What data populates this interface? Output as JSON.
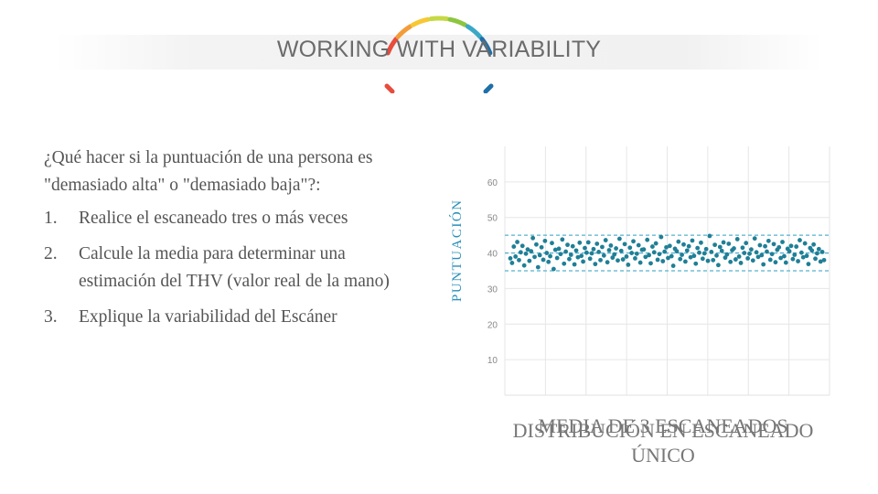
{
  "header": {
    "logo_text": "WORKING WITH VARIABILITY",
    "arc_colors": [
      "#e84c3d",
      "#f39c3a",
      "#f7c833",
      "#c6d844",
      "#8cc63f",
      "#3aa8c6",
      "#1f6fa8"
    ]
  },
  "content": {
    "question": "¿Qué hacer si la puntuación de una persona es \"demasiado alta\" o \"demasiado baja\"?:",
    "steps": [
      {
        "number": "1.",
        "text": "Realice el escaneado tres o más veces"
      },
      {
        "number": "2.",
        "text": "Calcule la media para determinar una estimación del THV (valor real de la mano)"
      },
      {
        "number": "3.",
        "text": "Explique la variabilidad del Escáner"
      }
    ]
  },
  "chart_data": {
    "type": "scatter",
    "ylabel": "PUNTUACIÓN",
    "xlabel_back": "MEDIA DE 3 ESCANEADOS",
    "xlabel_front": "DISTRIBUCIÓN EN ESCANEADO ÚNICO",
    "yticks": [
      10,
      20,
      30,
      40,
      50,
      60
    ],
    "ylim": [
      0,
      70
    ],
    "grid": true,
    "reference_lines": [
      35,
      40,
      45
    ],
    "point_color": "#1f7f96",
    "line_color": "#56b2cf",
    "y": [
      38.5,
      37.2,
      41.8,
      39.0,
      43.1,
      38.0,
      40.2,
      42.0,
      36.5,
      39.8,
      41.0,
      37.8,
      40.5,
      44.2,
      38.9,
      42.4,
      36.0,
      39.4,
      41.6,
      38.1,
      43.4,
      40.0,
      37.5,
      39.1,
      42.8,
      35.5,
      40.9,
      38.6,
      41.2,
      39.7,
      43.8,
      37.0,
      40.4,
      42.3,
      38.3,
      39.5,
      41.9,
      36.8,
      40.7,
      38.8,
      42.9,
      39.2,
      37.6,
      41.4,
      40.1,
      43.0,
      38.4,
      39.9,
      41.1,
      36.9,
      42.6,
      40.3,
      38.0,
      41.7,
      39.3,
      43.6,
      37.4,
      40.8,
      42.1,
      38.7,
      39.6,
      41.3,
      37.9,
      44.0,
      40.6,
      38.2,
      42.5,
      39.0,
      36.7,
      41.5,
      40.0,
      43.3,
      38.5,
      39.8,
      42.2,
      37.3,
      40.9,
      41.0,
      38.9,
      43.7,
      39.4,
      37.1,
      41.8,
      40.2,
      42.7,
      38.1,
      39.7,
      44.5,
      37.7,
      40.4,
      41.6,
      38.6,
      42.0,
      39.1,
      36.4,
      41.2,
      40.5,
      43.2,
      38.3,
      39.5,
      42.4,
      37.6,
      40.7,
      41.9,
      38.8,
      43.5,
      39.2,
      37.0,
      41.4,
      40.1,
      42.9,
      38.4,
      39.9,
      41.1,
      37.8,
      44.8,
      40.3,
      38.0,
      42.3,
      39.3,
      36.6,
      41.7,
      40.6,
      43.0,
      38.7,
      39.6,
      42.6,
      37.5,
      40.8,
      41.3,
      38.2,
      43.9,
      39.0,
      37.2,
      41.5,
      40.0,
      42.8,
      38.5,
      39.8,
      41.0,
      37.9,
      44.1,
      40.2,
      38.9,
      42.2,
      39.4,
      36.8,
      41.9,
      40.4,
      43.4,
      38.1,
      39.7,
      42.5,
      37.4,
      40.9,
      41.6,
      38.6,
      43.1,
      39.1,
      37.3,
      41.2,
      40.5,
      42.0,
      38.3,
      39.5,
      41.8,
      37.7,
      43.6,
      40.1,
      38.8,
      42.7,
      39.2,
      36.9,
      41.4,
      40.7,
      42.4,
      38.4,
      39.9,
      41.1,
      37.6,
      40.3,
      38.0
    ]
  }
}
